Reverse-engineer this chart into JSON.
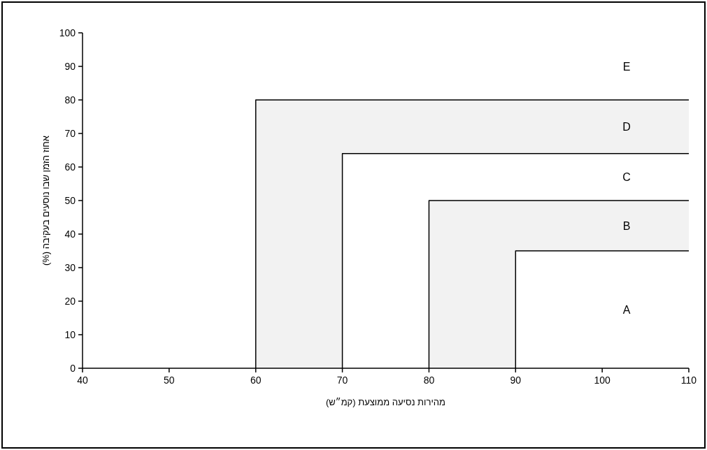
{
  "chart_data": {
    "type": "line",
    "xlabel": "מהירות נסיעה ממוצעת (קמ״ש)",
    "ylabel": "אחוז הזמן שבו נוסעים בעקיבה (%)",
    "xlim": [
      40,
      110
    ],
    "ylim": [
      0,
      100
    ],
    "xticks": [
      40,
      50,
      60,
      70,
      80,
      90,
      100,
      110
    ],
    "yticks": [
      0,
      10,
      20,
      30,
      40,
      50,
      60,
      70,
      80,
      90,
      100
    ],
    "series": [
      {
        "color": "#000000",
        "x": [
          60,
          60,
          110
        ],
        "values": [
          0,
          80,
          80
        ]
      },
      {
        "color": "#000000",
        "x": [
          70,
          70,
          110
        ],
        "values": [
          0,
          64,
          64
        ]
      },
      {
        "color": "#000000",
        "x": [
          80,
          80,
          110
        ],
        "values": [
          0,
          50,
          50
        ]
      },
      {
        "color": "#000000",
        "x": [
          90,
          90,
          110
        ],
        "values": [
          0,
          35,
          35
        ]
      }
    ],
    "annotations": [
      "E",
      "D",
      "C",
      "B",
      "A"
    ]
  }
}
